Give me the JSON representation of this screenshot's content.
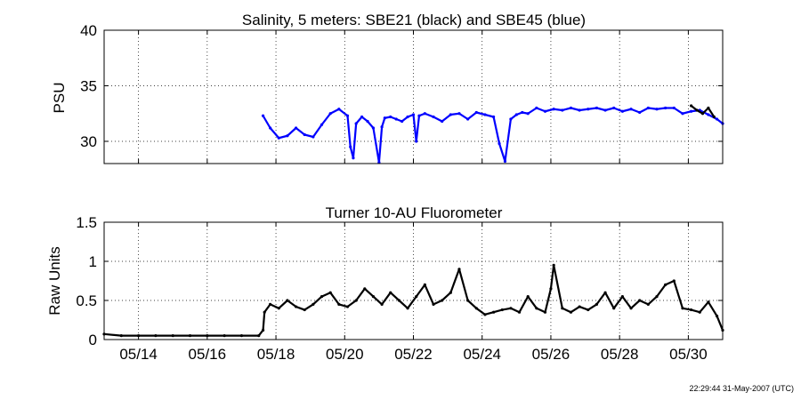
{
  "timestamp": "22:29:44 31-May-2007 (UTC)",
  "colors": {
    "sbe21": "#000000",
    "sbe45": "#0000ff",
    "fluorometer": "#000000"
  },
  "chart_data": [
    {
      "type": "scatter",
      "title": "Salinity, 5 meters: SBE21 (black) and SBE45 (blue)",
      "xlabel": "",
      "ylabel": "PSU",
      "xlim": [
        "2007-05-13",
        "2007-05-31"
      ],
      "ylim": [
        28,
        40
      ],
      "yticks": [
        30,
        35,
        40
      ],
      "ytick_labels": [
        "30",
        "35",
        "40"
      ],
      "xticks": [
        "2007-05-14",
        "2007-05-16",
        "2007-05-18",
        "2007-05-20",
        "2007-05-22",
        "2007-05-24",
        "2007-05-26",
        "2007-05-28",
        "2007-05-30"
      ],
      "xtick_labels": [],
      "grid": true,
      "series": [
        {
          "name": "SBE45",
          "color": "#0000ff",
          "x": [
            "2007-05-17 15:00",
            "2007-05-17 20:00",
            "2007-05-18 02:00",
            "2007-05-18 08:00",
            "2007-05-18 14:00",
            "2007-05-18 20:00",
            "2007-05-19 02:00",
            "2007-05-19 08:00",
            "2007-05-19 14:00",
            "2007-05-19 20:00",
            "2007-05-20 02:00",
            "2007-05-20 04:00",
            "2007-05-20 06:00",
            "2007-05-20 08:00",
            "2007-05-20 12:00",
            "2007-05-20 16:00",
            "2007-05-20 20:00",
            "2007-05-21 00:00",
            "2007-05-21 02:00",
            "2007-05-21 04:00",
            "2007-05-21 08:00",
            "2007-05-21 12:00",
            "2007-05-21 16:00",
            "2007-05-21 20:00",
            "2007-05-22 00:00",
            "2007-05-22 02:00",
            "2007-05-22 04:00",
            "2007-05-22 08:00",
            "2007-05-22 14:00",
            "2007-05-22 20:00",
            "2007-05-23 02:00",
            "2007-05-23 08:00",
            "2007-05-23 14:00",
            "2007-05-23 20:00",
            "2007-05-24 02:00",
            "2007-05-24 08:00",
            "2007-05-24 12:00",
            "2007-05-24 16:00",
            "2007-05-24 20:00",
            "2007-05-25 00:00",
            "2007-05-25 04:00",
            "2007-05-25 08:00",
            "2007-05-25 14:00",
            "2007-05-25 20:00",
            "2007-05-26 02:00",
            "2007-05-26 08:00",
            "2007-05-26 14:00",
            "2007-05-26 20:00",
            "2007-05-27 02:00",
            "2007-05-27 08:00",
            "2007-05-27 14:00",
            "2007-05-27 20:00",
            "2007-05-28 02:00",
            "2007-05-28 08:00",
            "2007-05-28 14:00",
            "2007-05-28 20:00",
            "2007-05-29 02:00",
            "2007-05-29 08:00",
            "2007-05-29 14:00",
            "2007-05-29 20:00",
            "2007-05-30 02:00",
            "2007-05-30 08:00",
            "2007-05-30 14:00",
            "2007-05-30 20:00",
            "2007-05-31 00:00"
          ],
          "y": [
            32.3,
            31.2,
            30.3,
            30.5,
            31.2,
            30.6,
            30.4,
            31.5,
            32.5,
            32.9,
            32.3,
            29.5,
            28.5,
            31.6,
            32.2,
            31.8,
            31.2,
            28.1,
            31.3,
            32.1,
            32.2,
            32.0,
            31.8,
            32.2,
            32.4,
            30.0,
            32.3,
            32.5,
            32.2,
            31.8,
            32.4,
            32.5,
            32.0,
            32.6,
            32.4,
            32.2,
            29.8,
            28.2,
            32.0,
            32.4,
            32.6,
            32.5,
            33.0,
            32.7,
            32.9,
            32.8,
            33.0,
            32.8,
            32.9,
            33.0,
            32.8,
            33.0,
            32.7,
            32.9,
            32.6,
            33.0,
            32.9,
            33.0,
            33.0,
            32.5,
            32.7,
            32.8,
            32.4,
            32.0,
            31.6
          ]
        },
        {
          "name": "SBE21",
          "color": "#000000",
          "x": [
            "2007-05-30 02:00",
            "2007-05-30 06:00",
            "2007-05-30 10:00",
            "2007-05-30 14:00",
            "2007-05-30 18:00"
          ],
          "y": [
            33.2,
            32.8,
            32.5,
            33.0,
            32.2
          ]
        }
      ]
    },
    {
      "type": "scatter",
      "title": "Turner 10-AU Fluorometer",
      "xlabel": "",
      "ylabel": "Raw Units",
      "xlim": [
        "2007-05-13",
        "2007-05-31"
      ],
      "ylim": [
        0,
        1.5
      ],
      "yticks": [
        0,
        0.5,
        1,
        1.5
      ],
      "ytick_labels": [
        "0",
        "0.5",
        "1",
        "1.5"
      ],
      "xticks": [
        "2007-05-14",
        "2007-05-16",
        "2007-05-18",
        "2007-05-20",
        "2007-05-22",
        "2007-05-24",
        "2007-05-26",
        "2007-05-28",
        "2007-05-30"
      ],
      "xtick_labels": [
        "05/14",
        "05/16",
        "05/18",
        "05/20",
        "05/22",
        "05/24",
        "05/26",
        "05/28",
        "05/30"
      ],
      "grid": true,
      "series": [
        {
          "name": "Fluorometer",
          "color": "#000000",
          "x": [
            "2007-05-13 00:00",
            "2007-05-13 12:00",
            "2007-05-14 00:00",
            "2007-05-14 12:00",
            "2007-05-15 00:00",
            "2007-05-15 12:00",
            "2007-05-16 00:00",
            "2007-05-16 12:00",
            "2007-05-17 00:00",
            "2007-05-17 12:00",
            "2007-05-17 15:00",
            "2007-05-17 16:00",
            "2007-05-17 20:00",
            "2007-05-18 02:00",
            "2007-05-18 08:00",
            "2007-05-18 14:00",
            "2007-05-18 20:00",
            "2007-05-19 02:00",
            "2007-05-19 08:00",
            "2007-05-19 14:00",
            "2007-05-19 20:00",
            "2007-05-20 02:00",
            "2007-05-20 08:00",
            "2007-05-20 14:00",
            "2007-05-20 20:00",
            "2007-05-21 02:00",
            "2007-05-21 08:00",
            "2007-05-21 14:00",
            "2007-05-21 20:00",
            "2007-05-22 02:00",
            "2007-05-22 08:00",
            "2007-05-22 14:00",
            "2007-05-22 20:00",
            "2007-05-23 02:00",
            "2007-05-23 08:00",
            "2007-05-23 14:00",
            "2007-05-23 20:00",
            "2007-05-24 02:00",
            "2007-05-24 08:00",
            "2007-05-24 14:00",
            "2007-05-24 20:00",
            "2007-05-25 02:00",
            "2007-05-25 08:00",
            "2007-05-25 14:00",
            "2007-05-25 20:00",
            "2007-05-26 00:00",
            "2007-05-26 02:00",
            "2007-05-26 08:00",
            "2007-05-26 14:00",
            "2007-05-26 20:00",
            "2007-05-27 02:00",
            "2007-05-27 08:00",
            "2007-05-27 14:00",
            "2007-05-27 20:00",
            "2007-05-28 02:00",
            "2007-05-28 08:00",
            "2007-05-28 14:00",
            "2007-05-28 20:00",
            "2007-05-29 02:00",
            "2007-05-29 08:00",
            "2007-05-29 14:00",
            "2007-05-29 20:00",
            "2007-05-30 02:00",
            "2007-05-30 08:00",
            "2007-05-30 14:00",
            "2007-05-30 20:00",
            "2007-05-31 00:00"
          ],
          "y": [
            0.07,
            0.05,
            0.05,
            0.05,
            0.05,
            0.05,
            0.05,
            0.05,
            0.05,
            0.05,
            0.12,
            0.35,
            0.45,
            0.4,
            0.5,
            0.42,
            0.38,
            0.45,
            0.55,
            0.6,
            0.45,
            0.42,
            0.5,
            0.65,
            0.55,
            0.45,
            0.6,
            0.5,
            0.4,
            0.55,
            0.7,
            0.45,
            0.5,
            0.6,
            0.9,
            0.5,
            0.4,
            0.32,
            0.35,
            0.38,
            0.4,
            0.35,
            0.55,
            0.4,
            0.35,
            0.65,
            0.95,
            0.4,
            0.35,
            0.42,
            0.38,
            0.45,
            0.6,
            0.4,
            0.55,
            0.4,
            0.5,
            0.45,
            0.55,
            0.7,
            0.75,
            0.4,
            0.38,
            0.35,
            0.48,
            0.3,
            0.12
          ]
        }
      ]
    }
  ]
}
